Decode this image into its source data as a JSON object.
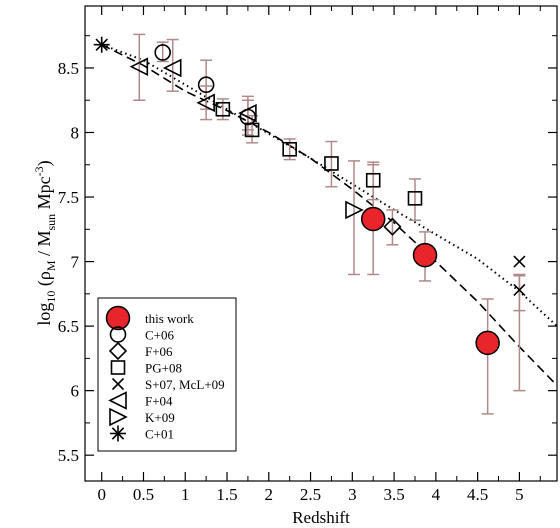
{
  "chart_data": {
    "type": "scatter",
    "xlabel": "Redshift",
    "ylabel": {
      "prefix": "log",
      "prefix_sub": "10",
      "open": " (ρ",
      "rho_sub": "M",
      "sep": "  /  M",
      "msun_sub": "sun",
      "unit": " Mpc",
      "unit_sup": "-3",
      "close": ")"
    },
    "xlim": [
      -0.2,
      5.45
    ],
    "ylim": [
      5.3,
      8.98
    ],
    "xticks": [
      0,
      0.5,
      1,
      1.5,
      2,
      2.5,
      3,
      3.5,
      4,
      4.5,
      5
    ],
    "xtick_labels": [
      "0",
      "0.5",
      "1",
      "1.5",
      "2",
      "2.5",
      "3",
      "3.5",
      "4",
      "4.5",
      "5"
    ],
    "yticks": [
      5.5,
      6,
      6.5,
      7,
      7.5,
      8,
      8.5
    ],
    "ytick_labels": [
      "5.5",
      "6",
      "6.5",
      "7",
      "7.5",
      "8",
      "8.5"
    ],
    "grid": false,
    "legend_position": "bottom-left",
    "errorbar_color": "#b08a8a",
    "accent_color": "#e8252a",
    "series": [
      {
        "name": "this work",
        "marker": "filled-circle",
        "points": [
          {
            "x": 3.25,
            "y": 7.33,
            "ylo": 6.9,
            "yhi": 7.75
          },
          {
            "x": 3.87,
            "y": 7.05,
            "ylo": 6.85,
            "yhi": 7.23
          },
          {
            "x": 4.62,
            "y": 6.37,
            "ylo": 5.82,
            "yhi": 6.71
          }
        ]
      },
      {
        "name": "C+06",
        "marker": "circle",
        "points": [
          {
            "x": 0.73,
            "y": 8.62,
            "ylo": 8.55,
            "yhi": 8.7
          },
          {
            "x": 1.25,
            "y": 8.37,
            "ylo": 8.18,
            "yhi": 8.56
          },
          {
            "x": 1.75,
            "y": 8.12,
            "ylo": 7.98,
            "yhi": 8.25
          }
        ]
      },
      {
        "name": "F+06",
        "marker": "diamond",
        "points": [
          {
            "x": 3.48,
            "y": 7.27,
            "ylo": 7.13,
            "yhi": 7.4
          }
        ]
      },
      {
        "name": "PG+08",
        "marker": "square",
        "points": [
          {
            "x": 1.45,
            "y": 8.18,
            "ylo": 8.1,
            "yhi": 8.26
          },
          {
            "x": 1.8,
            "y": 8.02,
            "ylo": 7.92,
            "yhi": 8.13
          },
          {
            "x": 2.25,
            "y": 7.87,
            "ylo": 7.79,
            "yhi": 7.95
          },
          {
            "x": 2.75,
            "y": 7.76,
            "ylo": 7.58,
            "yhi": 7.93
          },
          {
            "x": 3.25,
            "y": 7.63,
            "ylo": 7.48,
            "yhi": 7.77
          },
          {
            "x": 3.75,
            "y": 7.49,
            "ylo": 7.32,
            "yhi": 7.64
          }
        ]
      },
      {
        "name": "S+07, McL+09",
        "marker": "x",
        "points": [
          {
            "x": 5.0,
            "y": 7.0,
            "ylo": 6.62,
            "yhi": 6.89
          },
          {
            "x": 5.0,
            "y": 6.78,
            "ylo": 6.0,
            "yhi": 6.9
          }
        ]
      },
      {
        "name": "F+04",
        "marker": "triangle-left",
        "points": [
          {
            "x": 0.45,
            "y": 8.51,
            "ylo": 8.25,
            "yhi": 8.76
          },
          {
            "x": 0.85,
            "y": 8.5,
            "ylo": 8.32,
            "yhi": 8.72
          },
          {
            "x": 1.25,
            "y": 8.23,
            "ylo": 8.1,
            "yhi": 8.36
          },
          {
            "x": 1.75,
            "y": 8.15,
            "ylo": 8.02,
            "yhi": 8.28
          }
        ]
      },
      {
        "name": "K+09",
        "marker": "triangle-right",
        "points": [
          {
            "x": 3.02,
            "y": 7.4,
            "ylo": 6.9,
            "yhi": 7.78
          }
        ]
      },
      {
        "name": "C+01",
        "marker": "asterisk",
        "points": [
          {
            "x": 0.0,
            "y": 8.68,
            "ylo": 8.68,
            "yhi": 8.68
          }
        ]
      }
    ],
    "curves": [
      {
        "style": "dashed",
        "x": [
          0,
          0.5,
          1,
          1.5,
          2,
          2.5,
          3,
          3.5,
          4,
          4.5,
          5,
          5.45
        ],
        "y": [
          8.68,
          8.52,
          8.32,
          8.17,
          8.0,
          7.8,
          7.56,
          7.3,
          7.0,
          6.69,
          6.34,
          6.04
        ]
      },
      {
        "style": "dotted",
        "x": [
          0,
          0.5,
          1,
          1.5,
          2,
          2.5,
          3,
          3.5,
          4,
          4.5,
          5,
          5.45
        ],
        "y": [
          8.68,
          8.56,
          8.37,
          8.18,
          7.99,
          7.8,
          7.6,
          7.4,
          7.21,
          7.02,
          6.77,
          6.5
        ]
      }
    ]
  }
}
